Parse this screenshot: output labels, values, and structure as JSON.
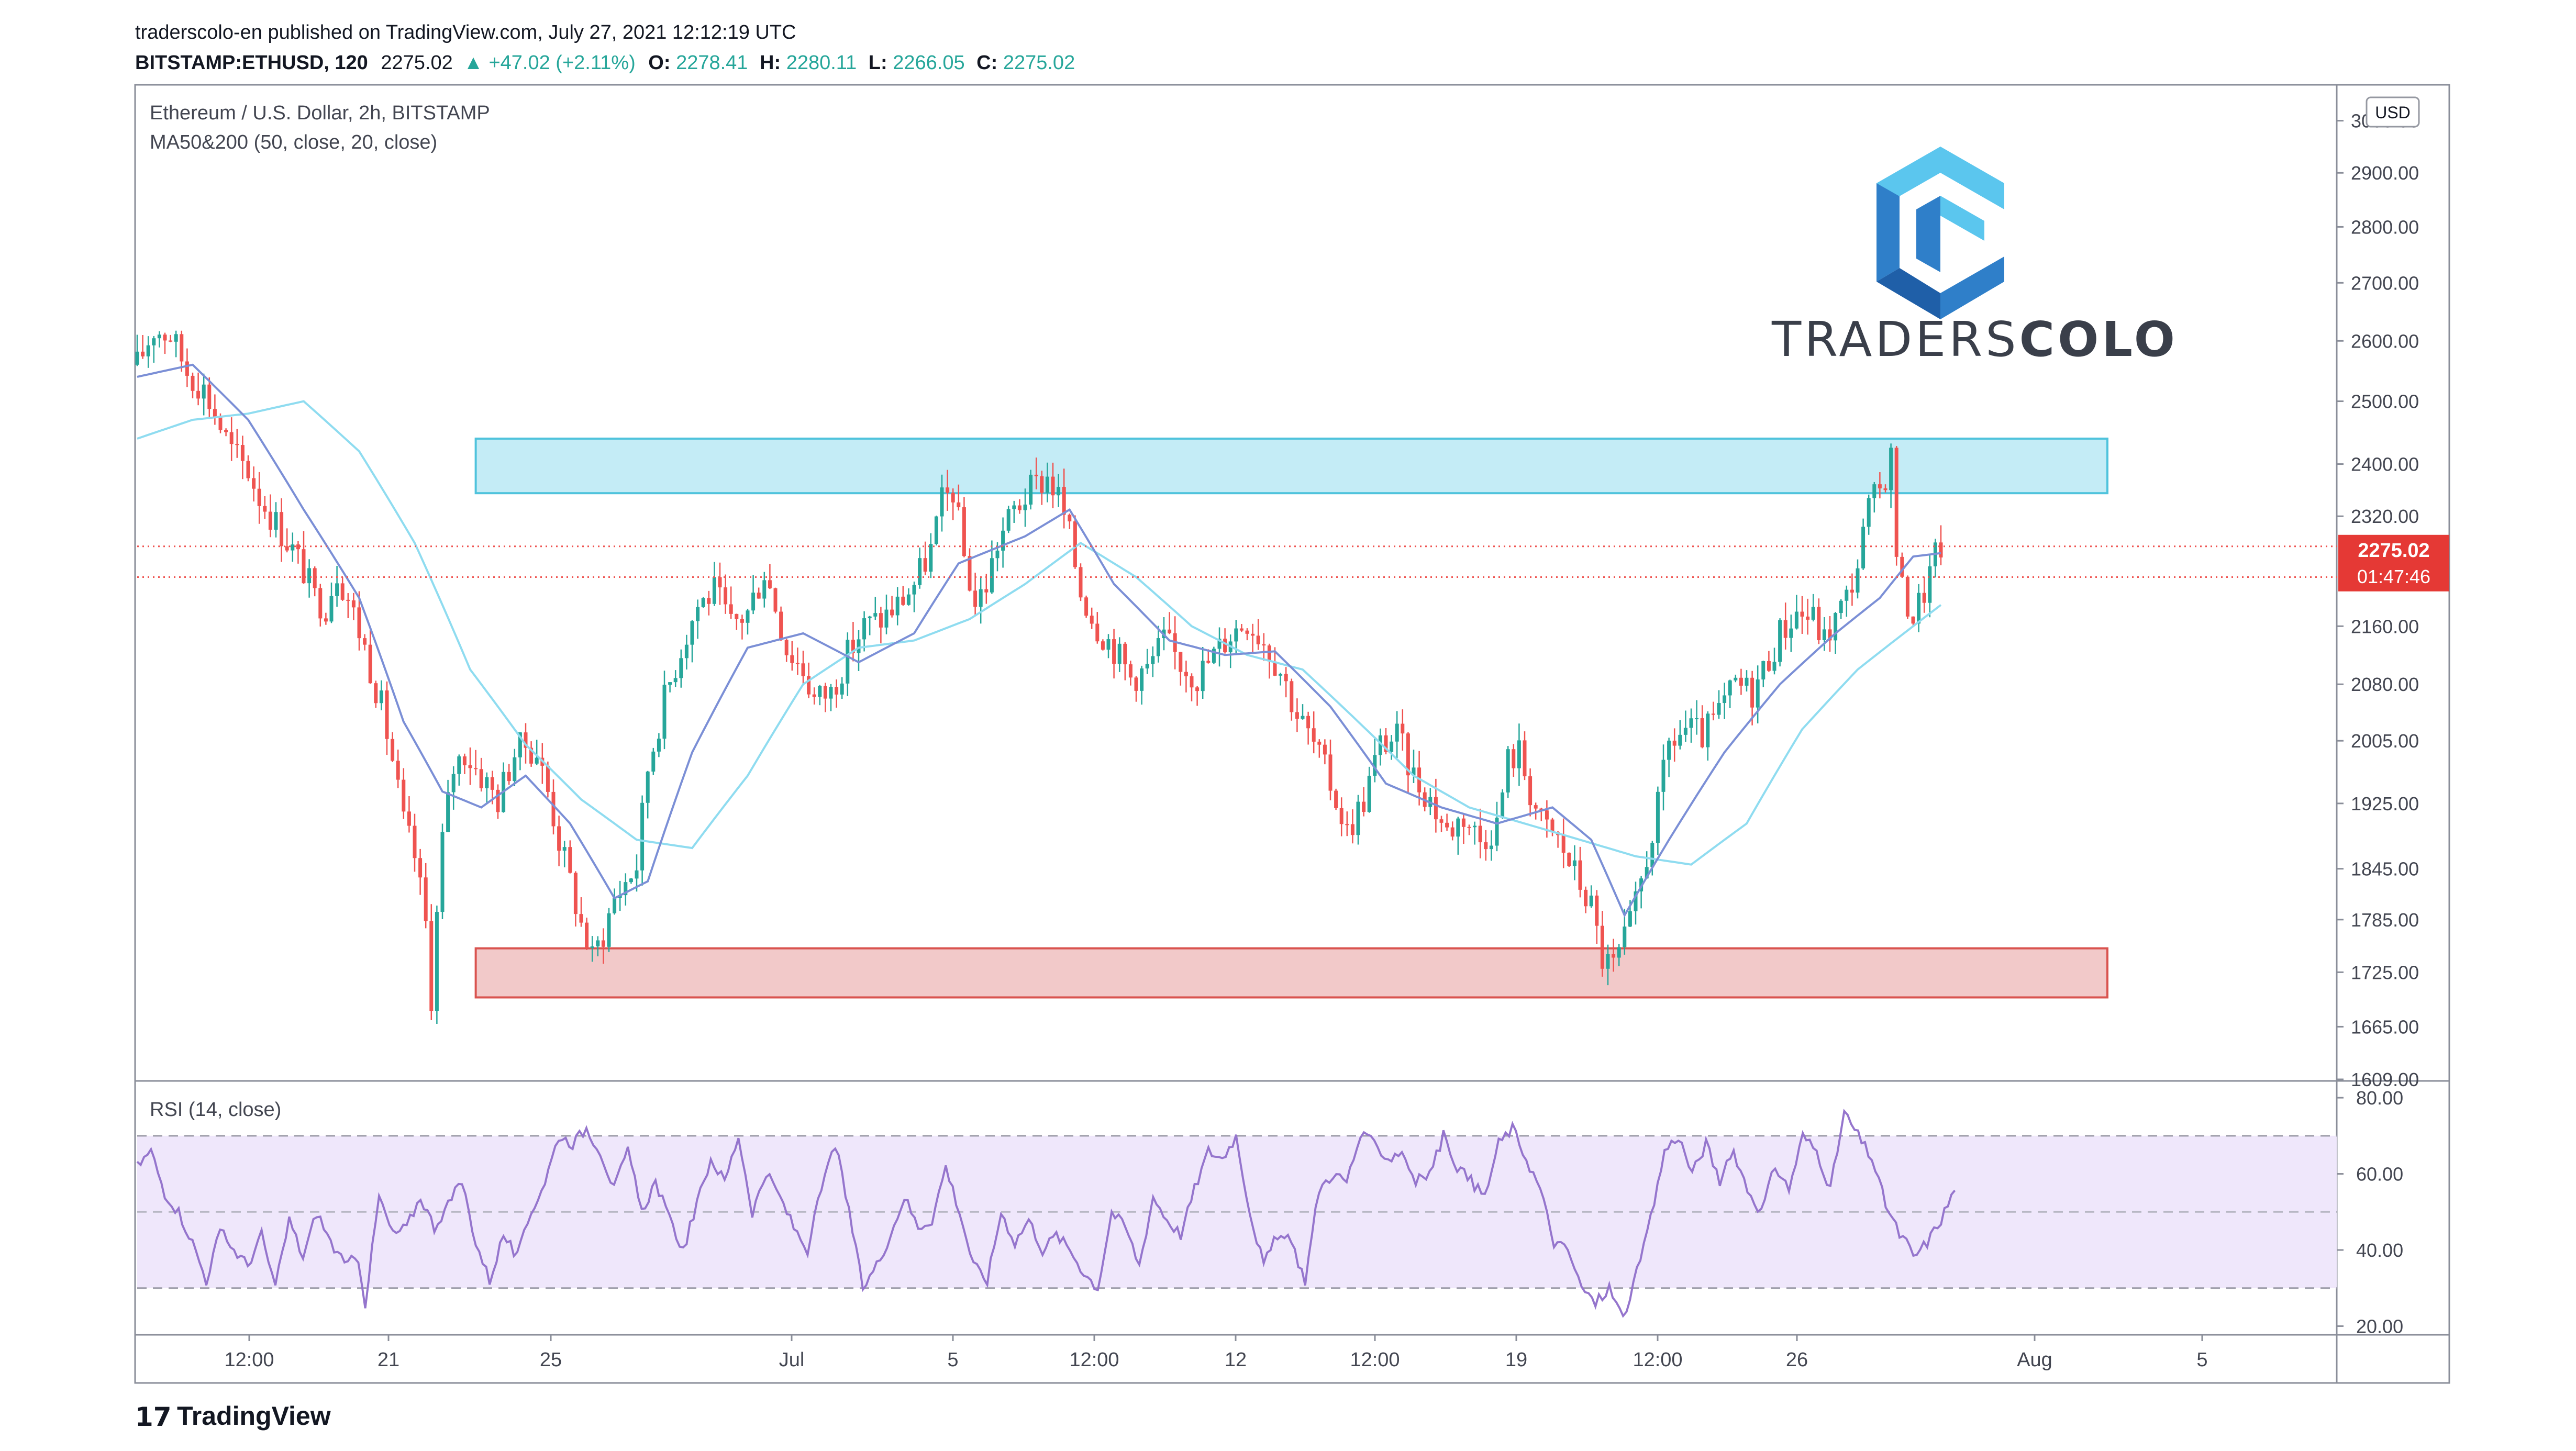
{
  "header": {
    "published": "traderscolo-en published on TradingView.com, July 27, 2021 12:12:19 UTC",
    "symbol": "BITSTAMP:ETHUSD, 120",
    "last": "2275.02",
    "change": "▲ +47.02 (+2.11%)",
    "o_label": "O:",
    "o": "2278.41",
    "h_label": "H:",
    "h": "2280.11",
    "l_label": "L:",
    "l": "2266.05",
    "c_label": "C:",
    "c": "2275.02"
  },
  "chart_legend": {
    "title": "Ethereum / U.S. Dollar, 2h, BITSTAMP",
    "indicator": "MA50&200 (50, close, 20, close)",
    "currency": "USD"
  },
  "rsi_legend": "RSI (14, close)",
  "logo": {
    "text_light": "TRADERS",
    "text_bold": "COLO"
  },
  "footer": {
    "brand": "TradingView"
  },
  "price_tag": {
    "price": "2275.02",
    "countdown": "01:47:46"
  },
  "colors": {
    "up": "#26a69a",
    "down": "#ef5350",
    "ma_fast": "#7b8fd6",
    "ma_slow": "#8fdcf0",
    "resistance_fill": "#c4ecf6",
    "resistance_border": "#4fc3dc",
    "support_fill": "#f2c9c9",
    "support_border": "#d9534f",
    "rsi_line": "#9575cd",
    "rsi_band": "#efe7fb",
    "logo": "#2f7fc9"
  },
  "chart_data": [
    {
      "type": "candlestick",
      "title": "Ethereum / U.S. Dollar, 2h, BITSTAMP",
      "y_ticks": [
        "3000.00",
        "2900.00",
        "2800.00",
        "2700.00",
        "2600.00",
        "2500.00",
        "2400.00",
        "2320.00",
        "2160.00",
        "2080.00",
        "2005.00",
        "1925.00",
        "1845.00",
        "1785.00",
        "1725.00",
        "1665.00",
        "1609.00"
      ],
      "x_ticks": [
        "12:00",
        "21",
        "25",
        "Jul",
        "5",
        "12:00",
        "12",
        "12:00",
        "19",
        "12:00",
        "26",
        "Aug",
        "5"
      ],
      "ylim": [
        1609,
        3050
      ],
      "scale": "log",
      "close_path": [
        [
          0,
          2560
        ],
        [
          3,
          2620
        ],
        [
          6,
          2610
        ],
        [
          9,
          2550
        ],
        [
          12,
          2520
        ],
        [
          15,
          2460
        ],
        [
          17,
          2420
        ],
        [
          20,
          2390
        ],
        [
          22,
          2350
        ],
        [
          25,
          2310
        ],
        [
          28,
          2270
        ],
        [
          30,
          2240
        ],
        [
          32,
          2200
        ],
        [
          34,
          2190
        ],
        [
          36,
          2240
        ],
        [
          38,
          2200
        ],
        [
          41,
          2130
        ],
        [
          44,
          2050
        ],
        [
          46,
          1980
        ],
        [
          48,
          1900
        ],
        [
          50,
          1860
        ],
        [
          52,
          1780
        ],
        [
          53,
          1700
        ],
        [
          55,
          1880
        ],
        [
          57,
          1970
        ],
        [
          59,
          1990
        ],
        [
          62,
          1960
        ],
        [
          65,
          1930
        ],
        [
          68,
          1990
        ],
        [
          70,
          2000
        ],
        [
          72,
          1990
        ],
        [
          74,
          1940
        ],
        [
          76,
          1880
        ],
        [
          78,
          1830
        ],
        [
          80,
          1780
        ],
        [
          82,
          1740
        ],
        [
          84,
          1770
        ],
        [
          86,
          1810
        ],
        [
          88,
          1830
        ],
        [
          90,
          1850
        ],
        [
          92,
          1970
        ],
        [
          95,
          2060
        ],
        [
          98,
          2130
        ],
        [
          101,
          2190
        ],
        [
          104,
          2210
        ],
        [
          107,
          2160
        ],
        [
          110,
          2180
        ],
        [
          113,
          2240
        ],
        [
          115,
          2190
        ],
        [
          117,
          2130
        ],
        [
          120,
          2100
        ],
        [
          122,
          2060
        ],
        [
          125,
          2070
        ],
        [
          128,
          2120
        ],
        [
          131,
          2160
        ],
        [
          134,
          2170
        ],
        [
          137,
          2190
        ],
        [
          140,
          2220
        ],
        [
          143,
          2270
        ],
        [
          145,
          2340
        ],
        [
          147,
          2360
        ],
        [
          149,
          2260
        ],
        [
          151,
          2190
        ],
        [
          153,
          2220
        ],
        [
          155,
          2280
        ],
        [
          158,
          2330
        ],
        [
          161,
          2360
        ],
        [
          164,
          2380
        ],
        [
          166,
          2350
        ],
        [
          168,
          2290
        ],
        [
          170,
          2210
        ],
        [
          173,
          2160
        ],
        [
          176,
          2130
        ],
        [
          179,
          2090
        ],
        [
          182,
          2100
        ],
        [
          185,
          2140
        ],
        [
          188,
          2110
        ],
        [
          191,
          2090
        ],
        [
          194,
          2120
        ],
        [
          197,
          2150
        ],
        [
          200,
          2170
        ],
        [
          203,
          2140
        ],
        [
          206,
          2100
        ],
        [
          209,
          2040
        ],
        [
          212,
          2000
        ],
        [
          215,
          1950
        ],
        [
          218,
          1890
        ],
        [
          221,
          1930
        ],
        [
          224,
          2000
        ],
        [
          227,
          2010
        ],
        [
          230,
          1960
        ],
        [
          233,
          1930
        ],
        [
          236,
          1890
        ],
        [
          239,
          1910
        ],
        [
          242,
          1880
        ],
        [
          245,
          1900
        ],
        [
          247,
          1980
        ],
        [
          249,
          1990
        ],
        [
          251,
          1940
        ],
        [
          253,
          1900
        ],
        [
          256,
          1880
        ],
        [
          259,
          1840
        ],
        [
          262,
          1800
        ],
        [
          264,
          1740
        ],
        [
          266,
          1730
        ],
        [
          268,
          1760
        ],
        [
          270,
          1800
        ],
        [
          272,
          1860
        ],
        [
          274,
          1920
        ],
        [
          276,
          2000
        ],
        [
          279,
          2020
        ],
        [
          282,
          2010
        ],
        [
          285,
          2040
        ],
        [
          288,
          2080
        ],
        [
          291,
          2070
        ],
        [
          293,
          2100
        ],
        [
          296,
          2150
        ],
        [
          299,
          2180
        ],
        [
          302,
          2170
        ],
        [
          304,
          2140
        ],
        [
          306,
          2170
        ],
        [
          308,
          2200
        ],
        [
          310,
          2250
        ],
        [
          312,
          2330
        ],
        [
          314,
          2360
        ],
        [
          316,
          2410
        ],
        [
          317,
          2270
        ],
        [
          318,
          2210
        ],
        [
          320,
          2175
        ],
        [
          322,
          2210
        ],
        [
          324,
          2260
        ],
        [
          325,
          2275
        ]
      ],
      "ma_fast_anchors": [
        [
          0,
          2540
        ],
        [
          10,
          2560
        ],
        [
          20,
          2470
        ],
        [
          30,
          2330
        ],
        [
          40,
          2200
        ],
        [
          48,
          2030
        ],
        [
          55,
          1940
        ],
        [
          62,
          1920
        ],
        [
          70,
          1960
        ],
        [
          78,
          1900
        ],
        [
          86,
          1810
        ],
        [
          92,
          1830
        ],
        [
          100,
          1990
        ],
        [
          110,
          2130
        ],
        [
          120,
          2150
        ],
        [
          130,
          2110
        ],
        [
          140,
          2150
        ],
        [
          148,
          2250
        ],
        [
          160,
          2290
        ],
        [
          168,
          2330
        ],
        [
          176,
          2220
        ],
        [
          186,
          2140
        ],
        [
          196,
          2120
        ],
        [
          205,
          2125
        ],
        [
          215,
          2050
        ],
        [
          225,
          1950
        ],
        [
          235,
          1920
        ],
        [
          245,
          1900
        ],
        [
          255,
          1920
        ],
        [
          262,
          1880
        ],
        [
          268,
          1790
        ],
        [
          276,
          1880
        ],
        [
          286,
          1990
        ],
        [
          296,
          2080
        ],
        [
          306,
          2150
        ],
        [
          314,
          2200
        ],
        [
          320,
          2260
        ],
        [
          325,
          2265
        ]
      ],
      "ma_slow_anchors": [
        [
          0,
          2440
        ],
        [
          10,
          2470
        ],
        [
          20,
          2480
        ],
        [
          30,
          2500
        ],
        [
          40,
          2420
        ],
        [
          50,
          2280
        ],
        [
          60,
          2100
        ],
        [
          70,
          2000
        ],
        [
          80,
          1930
        ],
        [
          90,
          1880
        ],
        [
          100,
          1870
        ],
        [
          110,
          1960
        ],
        [
          120,
          2080
        ],
        [
          130,
          2130
        ],
        [
          140,
          2140
        ],
        [
          150,
          2170
        ],
        [
          160,
          2220
        ],
        [
          170,
          2280
        ],
        [
          180,
          2230
        ],
        [
          190,
          2160
        ],
        [
          200,
          2120
        ],
        [
          210,
          2100
        ],
        [
          220,
          2030
        ],
        [
          230,
          1960
        ],
        [
          240,
          1920
        ],
        [
          250,
          1900
        ],
        [
          260,
          1880
        ],
        [
          270,
          1860
        ],
        [
          280,
          1850
        ],
        [
          290,
          1900
        ],
        [
          300,
          2020
        ],
        [
          310,
          2100
        ],
        [
          320,
          2160
        ],
        [
          325,
          2190
        ]
      ],
      "resistance_zone": {
        "x": [
          61,
          355
        ],
        "y": [
          2355,
          2440
        ]
      },
      "support_zone": {
        "x": [
          61,
          355
        ],
        "y": [
          1697,
          1752
        ]
      },
      "last_price": 2275.02,
      "second_price_line": 2230
    },
    {
      "type": "line",
      "title": "RSI (14, close)",
      "y_ticks": [
        "80.00",
        "60.00",
        "40.00",
        "20.00"
      ],
      "ylim": [
        18,
        84
      ],
      "bands": [
        30,
        50,
        70
      ],
      "anchors": [
        [
          0,
          62
        ],
        [
          4,
          66
        ],
        [
          8,
          55
        ],
        [
          12,
          50
        ],
        [
          16,
          42
        ],
        [
          20,
          32
        ],
        [
          24,
          45
        ],
        [
          28,
          40
        ],
        [
          32,
          36
        ],
        [
          36,
          44
        ],
        [
          40,
          30
        ],
        [
          44,
          48
        ],
        [
          48,
          38
        ],
        [
          52,
          50
        ],
        [
          56,
          42
        ],
        [
          60,
          36
        ],
        [
          64,
          38
        ],
        [
          66,
          26
        ],
        [
          70,
          54
        ],
        [
          74,
          44
        ],
        [
          78,
          46
        ],
        [
          82,
          54
        ],
        [
          86,
          46
        ],
        [
          90,
          52
        ],
        [
          94,
          58
        ],
        [
          98,
          42
        ],
        [
          102,
          32
        ],
        [
          106,
          44
        ],
        [
          110,
          38
        ],
        [
          114,
          50
        ],
        [
          118,
          58
        ],
        [
          122,
          70
        ],
        [
          126,
          68
        ],
        [
          130,
          72
        ],
        [
          134,
          66
        ],
        [
          138,
          56
        ],
        [
          142,
          66
        ],
        [
          146,
          50
        ],
        [
          150,
          58
        ],
        [
          154,
          48
        ],
        [
          158,
          40
        ],
        [
          162,
          52
        ],
        [
          166,
          64
        ],
        [
          170,
          58
        ],
        [
          174,
          70
        ],
        [
          178,
          50
        ],
        [
          182,
          60
        ],
        [
          186,
          54
        ],
        [
          190,
          46
        ],
        [
          194,
          40
        ],
        [
          198,
          56
        ],
        [
          202,
          68
        ],
        [
          206,
          50
        ],
        [
          210,
          30
        ],
        [
          214,
          36
        ],
        [
          218,
          44
        ],
        [
          222,
          54
        ],
        [
          226,
          46
        ],
        [
          230,
          48
        ],
        [
          234,
          62
        ],
        [
          238,
          50
        ],
        [
          242,
          36
        ],
        [
          246,
          32
        ],
        [
          250,
          50
        ],
        [
          254,
          42
        ],
        [
          258,
          48
        ],
        [
          262,
          40
        ],
        [
          266,
          44
        ],
        [
          270,
          40
        ],
        [
          274,
          34
        ],
        [
          278,
          30
        ],
        [
          282,
          50
        ],
        [
          286,
          46
        ],
        [
          290,
          36
        ],
        [
          294,
          54
        ],
        [
          298,
          48
        ],
        [
          302,
          44
        ],
        [
          306,
          56
        ],
        [
          310,
          66
        ],
        [
          314,
          64
        ],
        [
          318,
          70
        ],
        [
          322,
          50
        ],
        [
          326,
          36
        ],
        [
          330,
          44
        ],
        [
          334,
          42
        ],
        [
          338,
          32
        ],
        [
          342,
          56
        ],
        [
          346,
          60
        ],
        [
          350,
          58
        ],
        [
          354,
          70
        ],
        [
          358,
          68
        ],
        [
          362,
          64
        ],
        [
          366,
          66
        ],
        [
          370,
          58
        ],
        [
          374,
          60
        ],
        [
          378,
          70
        ],
        [
          382,
          62
        ],
        [
          386,
          58
        ],
        [
          390,
          54
        ],
        [
          394,
          68
        ],
        [
          398,
          72
        ],
        [
          402,
          64
        ],
        [
          406,
          56
        ],
        [
          410,
          42
        ],
        [
          414,
          40
        ],
        [
          418,
          30
        ],
        [
          422,
          26
        ],
        [
          426,
          30
        ],
        [
          430,
          22
        ],
        [
          434,
          34
        ],
        [
          438,
          48
        ],
        [
          442,
          66
        ],
        [
          446,
          70
        ],
        [
          450,
          60
        ],
        [
          454,
          68
        ],
        [
          458,
          58
        ],
        [
          462,
          66
        ],
        [
          466,
          56
        ],
        [
          470,
          50
        ],
        [
          474,
          62
        ],
        [
          478,
          56
        ],
        [
          482,
          70
        ],
        [
          486,
          66
        ],
        [
          490,
          56
        ],
        [
          494,
          76
        ],
        [
          498,
          70
        ],
        [
          502,
          64
        ],
        [
          506,
          52
        ],
        [
          510,
          44
        ],
        [
          512,
          42
        ],
        [
          514,
          38
        ],
        [
          518,
          42
        ],
        [
          522,
          48
        ],
        [
          526,
          56
        ]
      ],
      "last_value": 56
    }
  ]
}
